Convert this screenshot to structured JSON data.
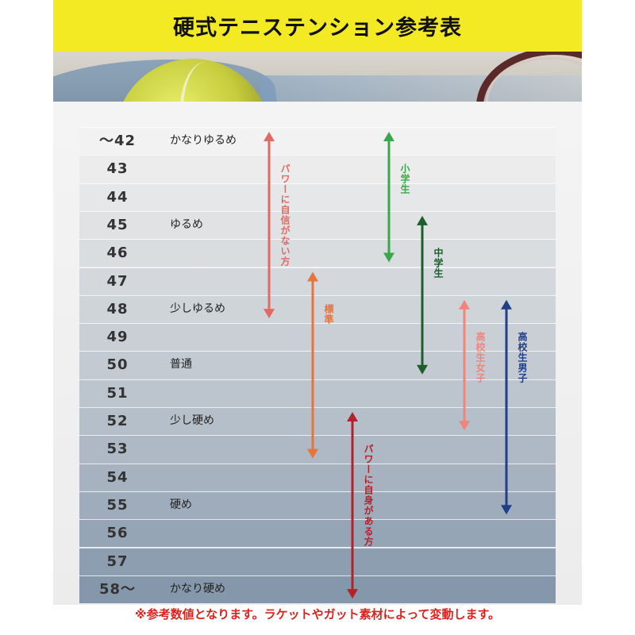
{
  "header": {
    "title": "硬式テニステンション参考表"
  },
  "rows": [
    {
      "tension": "～42",
      "desc": "かなりゆるめ",
      "color": "#f2f2f2"
    },
    {
      "tension": "43",
      "desc": "",
      "color": "#ececec"
    },
    {
      "tension": "44",
      "desc": "",
      "color": "#e6e7e8"
    },
    {
      "tension": "45",
      "desc": "ゆるめ",
      "color": "#e0e2e4"
    },
    {
      "tension": "46",
      "desc": "",
      "color": "#dadde0"
    },
    {
      "tension": "47",
      "desc": "",
      "color": "#d4d8dc"
    },
    {
      "tension": "48",
      "desc": "少しゆるめ",
      "color": "#cfd4d9"
    },
    {
      "tension": "49",
      "desc": "",
      "color": "#c9cfd5"
    },
    {
      "tension": "50",
      "desc": "普通",
      "color": "#c3cad1"
    },
    {
      "tension": "51",
      "desc": "",
      "color": "#bcc4cd"
    },
    {
      "tension": "52",
      "desc": "少し硬め",
      "color": "#b5bfc9"
    },
    {
      "tension": "53",
      "desc": "",
      "color": "#aeb9c5"
    },
    {
      "tension": "54",
      "desc": "",
      "color": "#a6b2c0"
    },
    {
      "tension": "55",
      "desc": "硬め",
      "color": "#9eacbb"
    },
    {
      "tension": "56",
      "desc": "",
      "color": "#96a5b6"
    },
    {
      "tension": "57",
      "desc": "",
      "color": "#8e9eb1"
    },
    {
      "tension": "58～",
      "desc": "かなり硬め",
      "color": "#8597ab"
    }
  ],
  "ranges": [
    {
      "label": "パワーに自信がない方",
      "from": "～42",
      "to": "48",
      "color": "#e06a66"
    },
    {
      "label": "小学生",
      "from": "～42",
      "to": "46",
      "color": "#3aa84a"
    },
    {
      "label": "標準",
      "from": "47",
      "to": "53",
      "color": "#e8743a"
    },
    {
      "label": "中学生",
      "from": "45",
      "to": "50",
      "color": "#1d5e2c"
    },
    {
      "label": "高校生女子",
      "from": "48",
      "to": "52",
      "color": "#ef857c"
    },
    {
      "label": "高校生男子",
      "from": "48",
      "to": "55",
      "color": "#1f3f8a"
    },
    {
      "label": "パワーに自身がある方",
      "from": "52",
      "to": "58～",
      "color": "#b3222b"
    }
  ],
  "footnote": "※参考数値となります。ラケットやガット素材によって変動します。"
}
